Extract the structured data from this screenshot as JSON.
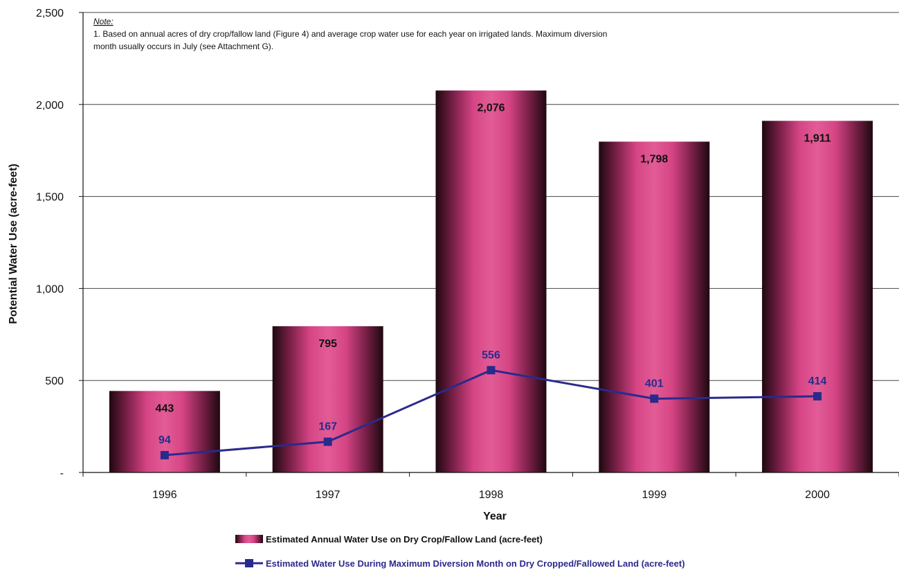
{
  "chart_data": {
    "type": "bar",
    "categories": [
      "1996",
      "1997",
      "1998",
      "1999",
      "2000"
    ],
    "series": [
      {
        "name": "Estimated Annual Water Use on Dry Crop/Fallow Land (acre-feet)",
        "type": "bar",
        "values": [
          443,
          795,
          2076,
          1798,
          1911
        ],
        "labels": [
          "443",
          "795",
          "2,076",
          "1,798",
          "1,911"
        ],
        "color": "#d4407e"
      },
      {
        "name": "Estimated Water Use During Maximum Diversion Month on Dry Cropped/Fallowed Land (acre-feet)",
        "type": "line",
        "values": [
          94,
          167,
          556,
          401,
          414
        ],
        "labels": [
          "94",
          "167",
          "556",
          "401",
          "414"
        ],
        "color": "#2a2a8c"
      }
    ],
    "xlabel": "Year",
    "ylabel": "Potential Water Use (acre-feet)",
    "ylim": [
      0,
      2500
    ],
    "yticks": [
      0,
      500,
      1000,
      1500,
      2000,
      2500
    ],
    "ytick_labels": [
      "-",
      "500",
      "1,000",
      "1,500",
      "2,000",
      "2,500"
    ],
    "grid": true,
    "legend_position": "bottom",
    "note": {
      "heading": "Note:",
      "line1": "1. Based on annual acres of dry crop/fallow land (Figure 4) and average crop water use for each year on irrigated lands.  Maximum diversion",
      "line2": "month usually occurs in July (see Attachment G)."
    }
  }
}
